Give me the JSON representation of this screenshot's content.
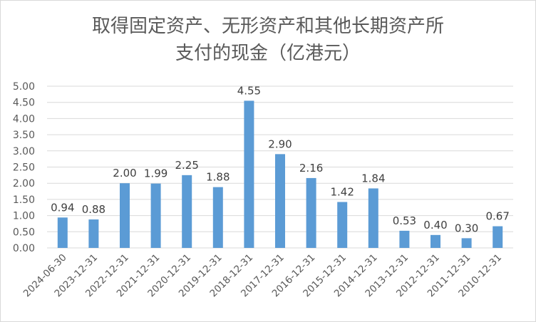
{
  "chart_data": {
    "type": "bar",
    "title_line1": "取得固定资产、无形资产和其他长期资产所",
    "title_line2": "支付的现金（亿港元）",
    "categories": [
      "2024-06-30",
      "2023-12-31",
      "2022-12-31",
      "2021-12-31",
      "2020-12-31",
      "2019-12-31",
      "2018-12-31",
      "2017-12-31",
      "2016-12-31",
      "2015-12-31",
      "2014-12-31",
      "2013-12-31",
      "2012-12-31",
      "2011-12-31",
      "2010-12-31"
    ],
    "values": [
      0.94,
      0.88,
      2.0,
      1.99,
      2.25,
      1.88,
      4.55,
      2.9,
      2.16,
      1.42,
      1.84,
      0.53,
      0.4,
      0.3,
      0.67
    ],
    "data_labels": [
      "0.94",
      "0.88",
      "2.00",
      "1.99",
      "2.25",
      "1.88",
      "4.55",
      "2.90",
      "2.16",
      "1.42",
      "1.84",
      "0.53",
      "0.40",
      "0.30",
      "0.67"
    ],
    "y_ticks": [
      "0.00",
      "0.50",
      "1.00",
      "1.50",
      "2.00",
      "2.50",
      "3.00",
      "3.50",
      "4.00",
      "4.50",
      "5.00"
    ],
    "ylim": [
      0,
      5
    ],
    "grid": true,
    "legend": "none",
    "bar_color": "#5b9bd5",
    "grid_color": "#d9d9d9"
  }
}
